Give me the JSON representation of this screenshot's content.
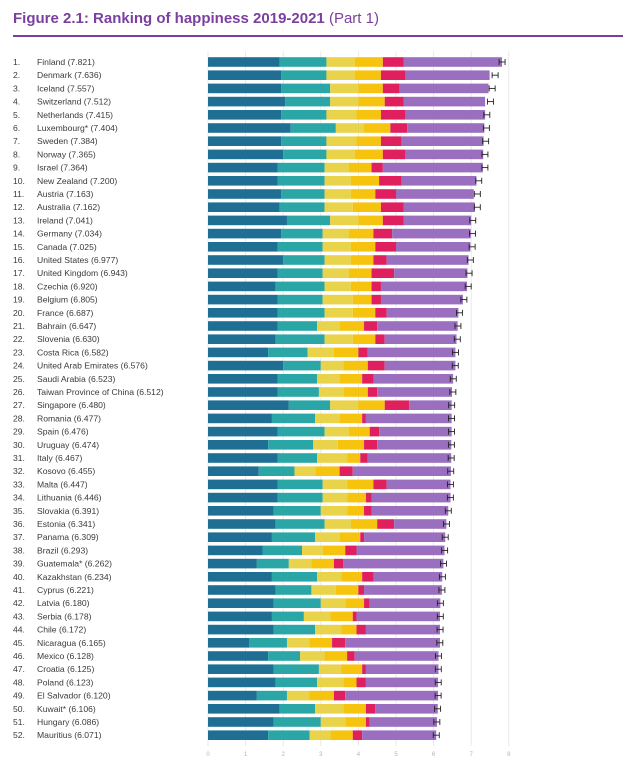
{
  "figure": {
    "title_bold": "Figure 2.1: Ranking of happiness 2019-2021",
    "title_part": "(Part 1)"
  },
  "colors": {
    "title": "#7b3fa0",
    "components": [
      "#1f6f94",
      "#2aa6a7",
      "#e8d34a",
      "#f6c40f",
      "#e0205e",
      "#9a6fc0"
    ]
  },
  "chart_data": {
    "type": "bar",
    "stacked": true,
    "orientation": "horizontal",
    "xlim": [
      0,
      8
    ],
    "x_ticks": [
      "0",
      "1",
      "2",
      "3",
      "4",
      "5",
      "6",
      "7",
      "8"
    ],
    "grid": true,
    "rows": [
      {
        "rank": "1.",
        "label": "Finland (7.821)",
        "score": 7.821,
        "parts": [
          1.9,
          1.25,
          0.75,
          0.75,
          0.55,
          2.62
        ]
      },
      {
        "rank": "2.",
        "label": "Denmark (7.636)",
        "score": 7.636,
        "parts": [
          1.95,
          1.2,
          0.75,
          0.7,
          0.65,
          2.24
        ]
      },
      {
        "rank": "3.",
        "label": "Iceland (7.557)",
        "score": 7.557,
        "parts": [
          1.95,
          1.3,
          0.75,
          0.65,
          0.45,
          2.36
        ]
      },
      {
        "rank": "4.",
        "label": "Switzerland (7.512)",
        "score": 7.512,
        "parts": [
          2.05,
          1.2,
          0.75,
          0.7,
          0.5,
          2.17
        ]
      },
      {
        "rank": "5.",
        "label": "Netherlands (7.415)",
        "score": 7.415,
        "parts": [
          1.95,
          1.2,
          0.8,
          0.65,
          0.65,
          2.12
        ]
      },
      {
        "rank": "6.",
        "label": "Luxembourg* (7.404)",
        "score": 7.404,
        "parts": [
          2.2,
          1.2,
          0.75,
          0.7,
          0.45,
          2.05
        ]
      },
      {
        "rank": "7.",
        "label": "Sweden (7.384)",
        "score": 7.384,
        "parts": [
          1.95,
          1.2,
          0.8,
          0.65,
          0.55,
          2.18
        ]
      },
      {
        "rank": "8.",
        "label": "Norway (7.365)",
        "score": 7.365,
        "parts": [
          2.0,
          1.15,
          0.75,
          0.75,
          0.6,
          2.07
        ]
      },
      {
        "rank": "9.",
        "label": "Israel (7.364)",
        "score": 7.364,
        "parts": [
          1.85,
          1.25,
          0.65,
          0.6,
          0.3,
          2.66
        ]
      },
      {
        "rank": "10.",
        "label": "New Zealand (7.200)",
        "score": 7.2,
        "parts": [
          1.85,
          1.25,
          0.7,
          0.75,
          0.6,
          1.99
        ]
      },
      {
        "rank": "11.",
        "label": "Austria (7.163)",
        "score": 7.163,
        "parts": [
          1.95,
          1.15,
          0.7,
          0.65,
          0.55,
          2.07
        ]
      },
      {
        "rank": "12.",
        "label": "Australia (7.162)",
        "score": 7.162,
        "parts": [
          1.9,
          1.2,
          0.75,
          0.75,
          0.6,
          1.9
        ]
      },
      {
        "rank": "13.",
        "label": "Ireland (7.041)",
        "score": 7.041,
        "parts": [
          2.1,
          1.15,
          0.75,
          0.65,
          0.55,
          1.8
        ]
      },
      {
        "rank": "14.",
        "label": "Germany (7.034)",
        "score": 7.034,
        "parts": [
          1.95,
          1.1,
          0.7,
          0.65,
          0.5,
          2.09
        ]
      },
      {
        "rank": "15.",
        "label": "Canada (7.025)",
        "score": 7.025,
        "parts": [
          1.85,
          1.2,
          0.75,
          0.65,
          0.55,
          1.98
        ]
      },
      {
        "rank": "16.",
        "label": "United States (6.977)",
        "score": 6.977,
        "parts": [
          2.0,
          1.1,
          0.7,
          0.6,
          0.35,
          2.18
        ]
      },
      {
        "rank": "17.",
        "label": "United Kingdom (6.943)",
        "score": 6.943,
        "parts": [
          1.85,
          1.2,
          0.7,
          0.6,
          0.6,
          1.95
        ]
      },
      {
        "rank": "18.",
        "label": "Czechia (6.920)",
        "score": 6.92,
        "parts": [
          1.8,
          1.3,
          0.7,
          0.55,
          0.25,
          2.29
        ]
      },
      {
        "rank": "19.",
        "label": "Belgium (6.805)",
        "score": 6.805,
        "parts": [
          1.85,
          1.2,
          0.8,
          0.5,
          0.25,
          2.18
        ]
      },
      {
        "rank": "20.",
        "label": "France (6.687)",
        "score": 6.687,
        "parts": [
          1.85,
          1.25,
          0.75,
          0.6,
          0.3,
          1.91
        ]
      },
      {
        "rank": "21.",
        "label": "Bahrain (6.647)",
        "score": 6.647,
        "parts": [
          1.85,
          1.05,
          0.6,
          0.65,
          0.35,
          2.14
        ]
      },
      {
        "rank": "22.",
        "label": "Slovenia (6.630)",
        "score": 6.63,
        "parts": [
          1.8,
          1.3,
          0.75,
          0.6,
          0.25,
          1.91
        ]
      },
      {
        "rank": "23.",
        "label": "Costa Rica (6.582)",
        "score": 6.582,
        "parts": [
          1.6,
          1.05,
          0.7,
          0.65,
          0.25,
          2.33
        ]
      },
      {
        "rank": "24.",
        "label": "United Arab Emirates (6.576)",
        "score": 6.576,
        "parts": [
          2.0,
          1.0,
          0.6,
          0.65,
          0.45,
          1.88
        ]
      },
      {
        "rank": "25.",
        "label": "Saudi Arabia (6.523)",
        "score": 6.523,
        "parts": [
          1.85,
          1.05,
          0.6,
          0.6,
          0.3,
          2.12
        ]
      },
      {
        "rank": "26.",
        "label": "Taiwan Province of China (6.512)",
        "score": 6.512,
        "parts": [
          1.85,
          1.1,
          0.65,
          0.65,
          0.25,
          1.99
        ]
      },
      {
        "rank": "27.",
        "label": "Singapore (6.480)",
        "score": 6.48,
        "parts": [
          2.15,
          1.1,
          0.75,
          0.7,
          0.65,
          1.13
        ]
      },
      {
        "rank": "28.",
        "label": "Romania (6.477)",
        "score": 6.477,
        "parts": [
          1.7,
          1.15,
          0.65,
          0.6,
          0.1,
          2.28
        ]
      },
      {
        "rank": "29.",
        "label": "Spain (6.476)",
        "score": 6.476,
        "parts": [
          1.85,
          1.25,
          0.65,
          0.55,
          0.25,
          1.93
        ]
      },
      {
        "rank": "30.",
        "label": "Uruguay (6.474)",
        "score": 6.474,
        "parts": [
          1.6,
          1.2,
          0.65,
          0.7,
          0.35,
          1.97
        ]
      },
      {
        "rank": "31.",
        "label": "Italy (6.467)",
        "score": 6.467,
        "parts": [
          1.85,
          1.05,
          0.8,
          0.35,
          0.2,
          2.22
        ]
      },
      {
        "rank": "32.",
        "label": "Kosovo (6.455)",
        "score": 6.455,
        "parts": [
          1.35,
          0.95,
          0.55,
          0.65,
          0.35,
          2.61
        ]
      },
      {
        "rank": "33.",
        "label": "Malta (6.447)",
        "score": 6.447,
        "parts": [
          1.85,
          1.2,
          0.65,
          0.7,
          0.35,
          1.7
        ]
      },
      {
        "rank": "34.",
        "label": "Lithuania (6.446)",
        "score": 6.446,
        "parts": [
          1.85,
          1.2,
          0.65,
          0.5,
          0.15,
          2.1
        ]
      },
      {
        "rank": "35.",
        "label": "Slovakia (6.391)",
        "score": 6.391,
        "parts": [
          1.75,
          1.25,
          0.7,
          0.45,
          0.2,
          2.04
        ]
      },
      {
        "rank": "36.",
        "label": "Estonia (6.341)",
        "score": 6.341,
        "parts": [
          1.8,
          1.3,
          0.7,
          0.7,
          0.45,
          1.39
        ]
      },
      {
        "rank": "37.",
        "label": "Panama (6.309)",
        "score": 6.309,
        "parts": [
          1.7,
          1.15,
          0.65,
          0.55,
          0.1,
          2.16
        ]
      },
      {
        "rank": "38.",
        "label": "Brazil (6.293)",
        "score": 6.293,
        "parts": [
          1.45,
          1.05,
          0.55,
          0.6,
          0.3,
          2.34
        ]
      },
      {
        "rank": "39.",
        "label": "Guatemala* (6.262)",
        "score": 6.262,
        "parts": [
          1.3,
          0.85,
          0.6,
          0.6,
          0.25,
          2.66
        ]
      },
      {
        "rank": "40.",
        "label": "Kazakhstan (6.234)",
        "score": 6.234,
        "parts": [
          1.7,
          1.2,
          0.65,
          0.55,
          0.3,
          1.83
        ]
      },
      {
        "rank": "41.",
        "label": "Cyprus (6.221)",
        "score": 6.221,
        "parts": [
          1.8,
          0.95,
          0.65,
          0.6,
          0.15,
          2.07
        ]
      },
      {
        "rank": "42.",
        "label": "Latvia (6.180)",
        "score": 6.18,
        "parts": [
          1.75,
          1.25,
          0.65,
          0.5,
          0.15,
          1.88
        ]
      },
      {
        "rank": "43.",
        "label": "Serbia (6.178)",
        "score": 6.178,
        "parts": [
          1.7,
          0.85,
          0.7,
          0.6,
          0.1,
          2.22
        ]
      },
      {
        "rank": "44.",
        "label": "Chile (6.172)",
        "score": 6.172,
        "parts": [
          1.75,
          1.1,
          0.7,
          0.4,
          0.25,
          1.97
        ]
      },
      {
        "rank": "45.",
        "label": "Nicaragua (6.165)",
        "score": 6.165,
        "parts": [
          1.1,
          1.0,
          0.6,
          0.6,
          0.35,
          2.52
        ]
      },
      {
        "rank": "46.",
        "label": "Mexico (6.128)",
        "score": 6.128,
        "parts": [
          1.6,
          0.85,
          0.65,
          0.6,
          0.2,
          2.23
        ]
      },
      {
        "rank": "47.",
        "label": "Croatia (6.125)",
        "score": 6.125,
        "parts": [
          1.75,
          1.2,
          0.6,
          0.55,
          0.1,
          1.93
        ]
      },
      {
        "rank": "48.",
        "label": "Poland (6.123)",
        "score": 6.123,
        "parts": [
          1.8,
          1.1,
          0.7,
          0.35,
          0.25,
          1.92
        ]
      },
      {
        "rank": "49.",
        "label": "El Salvador (6.120)",
        "score": 6.12,
        "parts": [
          1.3,
          0.8,
          0.6,
          0.65,
          0.3,
          2.47
        ]
      },
      {
        "rank": "50.",
        "label": "Kuwait* (6.106)",
        "score": 6.106,
        "parts": [
          1.9,
          0.95,
          0.75,
          0.6,
          0.25,
          1.66
        ]
      },
      {
        "rank": "51.",
        "label": "Hungary (6.086)",
        "score": 6.086,
        "parts": [
          1.75,
          1.25,
          0.65,
          0.55,
          0.1,
          1.79
        ]
      },
      {
        "rank": "52.",
        "label": "Mauritius (6.071)",
        "score": 6.071,
        "parts": [
          1.6,
          1.1,
          0.55,
          0.6,
          0.25,
          1.97
        ]
      }
    ]
  }
}
